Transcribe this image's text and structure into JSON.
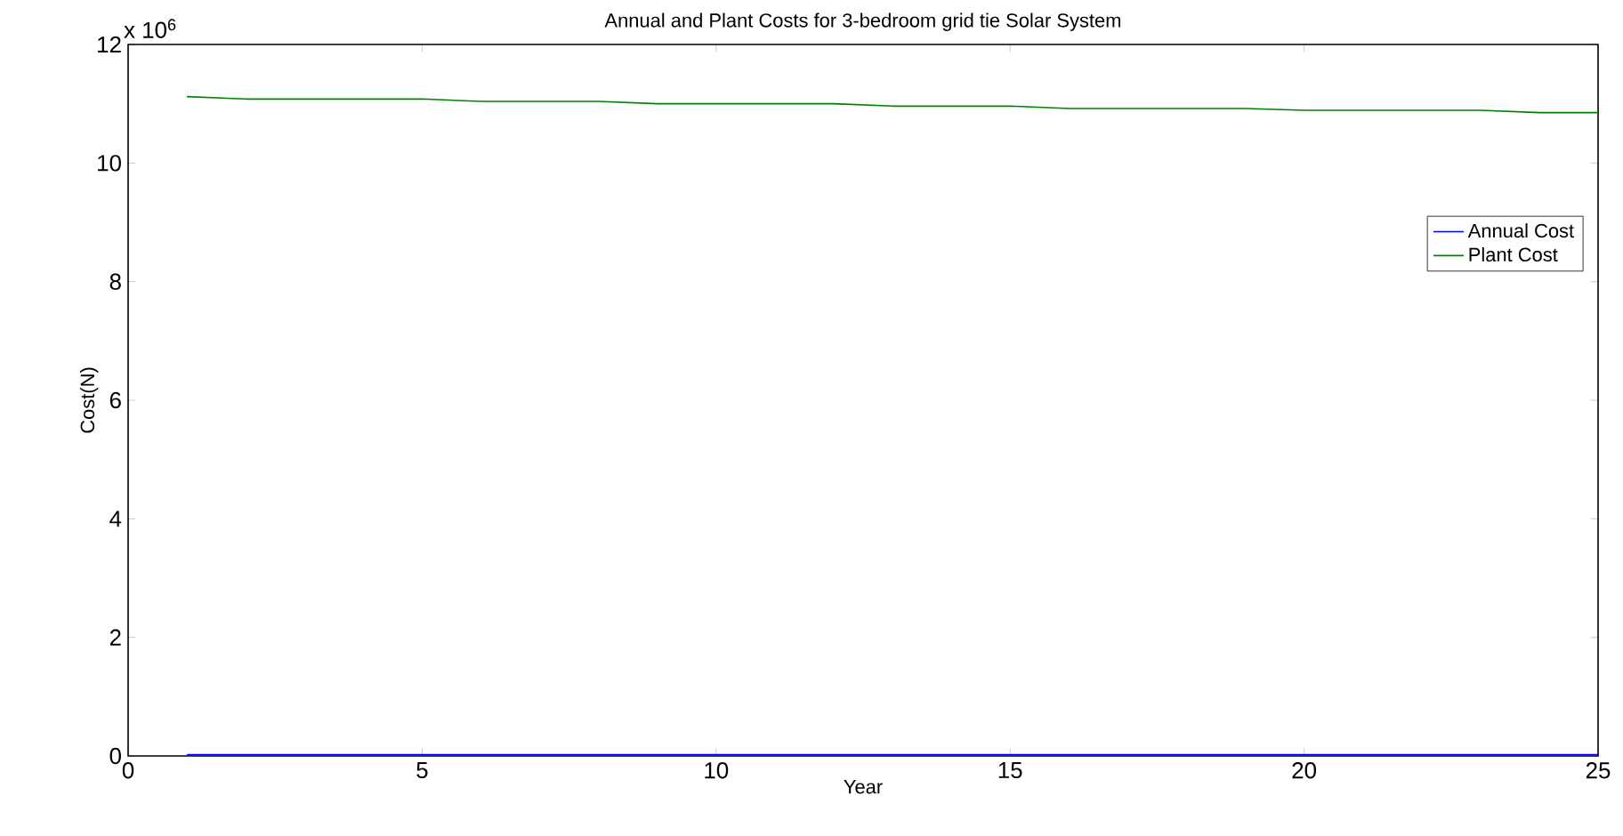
{
  "chart_data": {
    "type": "line",
    "title": "Annual and Plant Costs for 3-bedroom grid tie Solar System",
    "xlabel": "Year",
    "ylabel": "Cost(N)",
    "annotations": [
      "x 10$^{6}$"
    ],
    "x": [
      1,
      2,
      3,
      4,
      5,
      6,
      7,
      8,
      9,
      10,
      11,
      12,
      13,
      14,
      15,
      16,
      17,
      18,
      19,
      20,
      21,
      22,
      23,
      24,
      25
    ],
    "series": [
      {
        "name": "Annual Cost",
        "color": "#0000ff",
        "values": [
          0.02,
          0.02,
          0.02,
          0.02,
          0.02,
          0.02,
          0.02,
          0.02,
          0.02,
          0.02,
          0.02,
          0.02,
          0.02,
          0.02,
          0.02,
          0.02,
          0.02,
          0.02,
          0.02,
          0.02,
          0.02,
          0.02,
          0.02,
          0.02,
          0.02
        ]
      },
      {
        "name": "Plant Cost",
        "color": "#008000",
        "values": [
          11.12,
          11.08,
          11.08,
          11.08,
          11.08,
          11.04,
          11.04,
          11.04,
          11.0,
          11.0,
          11.0,
          11.0,
          10.96,
          10.96,
          10.96,
          10.92,
          10.92,
          10.92,
          10.92,
          10.89,
          10.89,
          10.89,
          10.89,
          10.85,
          10.85
        ]
      }
    ],
    "xlim": [
      0,
      25
    ],
    "ylim": [
      0,
      12
    ],
    "xticks": [
      0,
      5,
      10,
      15,
      20,
      25
    ],
    "yticks": [
      0,
      2,
      4,
      6,
      8,
      10,
      12
    ],
    "grid": false,
    "legend": "right",
    "marker": "none",
    "line_style": "solid"
  }
}
